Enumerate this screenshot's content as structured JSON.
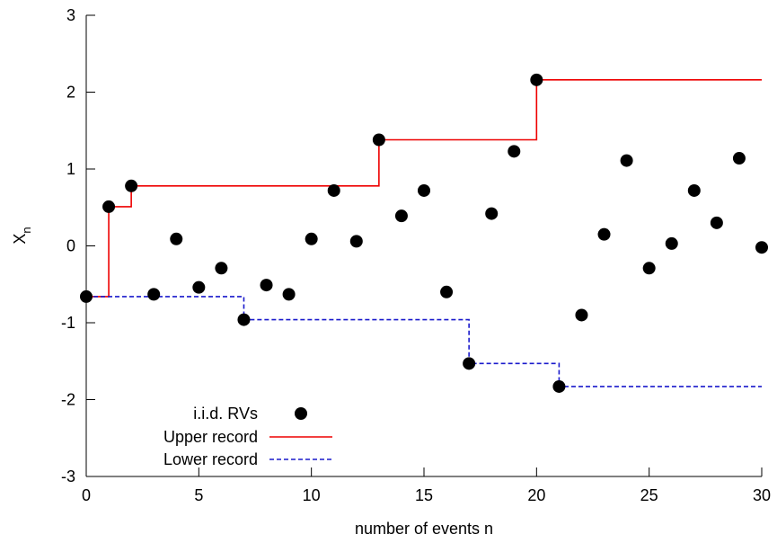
{
  "chart_data": {
    "type": "scatter",
    "title": "",
    "xlabel": "number of events n",
    "ylabel_main": "X",
    "ylabel_sub": "n",
    "xlim": [
      0,
      30
    ],
    "ylim": [
      -3,
      3
    ],
    "xticks": [
      0,
      5,
      10,
      15,
      20,
      25,
      30
    ],
    "xtick_labels": [
      "0",
      "5",
      "10",
      "15",
      "20",
      "25",
      "30"
    ],
    "yticks": [
      -3,
      -2,
      -1,
      0,
      1,
      2,
      3
    ],
    "ytick_labels": [
      "-3",
      "-2",
      "-1",
      "0",
      "1",
      "2",
      "3"
    ],
    "grid": false,
    "legend_position": "bottom-left",
    "series": [
      {
        "name": "i.i.d. RVs",
        "kind": "points",
        "color": "#000000",
        "x": [
          0,
          1,
          2,
          3,
          4,
          5,
          6,
          7,
          8,
          9,
          10,
          11,
          12,
          13,
          14,
          15,
          16,
          17,
          18,
          19,
          20,
          21,
          22,
          23,
          24,
          25,
          26,
          27,
          28,
          29,
          30
        ],
        "y": [
          -0.66,
          0.51,
          0.78,
          -0.63,
          0.09,
          -0.54,
          -0.29,
          -0.96,
          -0.51,
          -0.63,
          0.09,
          0.72,
          0.06,
          1.38,
          0.39,
          0.72,
          -0.6,
          -1.53,
          0.42,
          1.23,
          2.16,
          -1.83,
          -0.9,
          0.15,
          1.11,
          -0.29,
          0.03,
          0.72,
          0.3,
          1.14,
          -0.02
        ]
      },
      {
        "name": "Upper record",
        "kind": "step",
        "color": "#ee0000",
        "dash": "solid",
        "x": [
          0,
          1,
          2,
          13,
          20,
          30
        ],
        "y": [
          -0.66,
          0.51,
          0.78,
          1.38,
          2.16,
          2.16
        ]
      },
      {
        "name": "Lower record",
        "kind": "step",
        "color": "#1a1acc",
        "dash": "dashed",
        "x": [
          0,
          7,
          17,
          21,
          30
        ],
        "y": [
          -0.66,
          -0.96,
          -1.53,
          -1.83,
          -1.83
        ]
      }
    ]
  }
}
